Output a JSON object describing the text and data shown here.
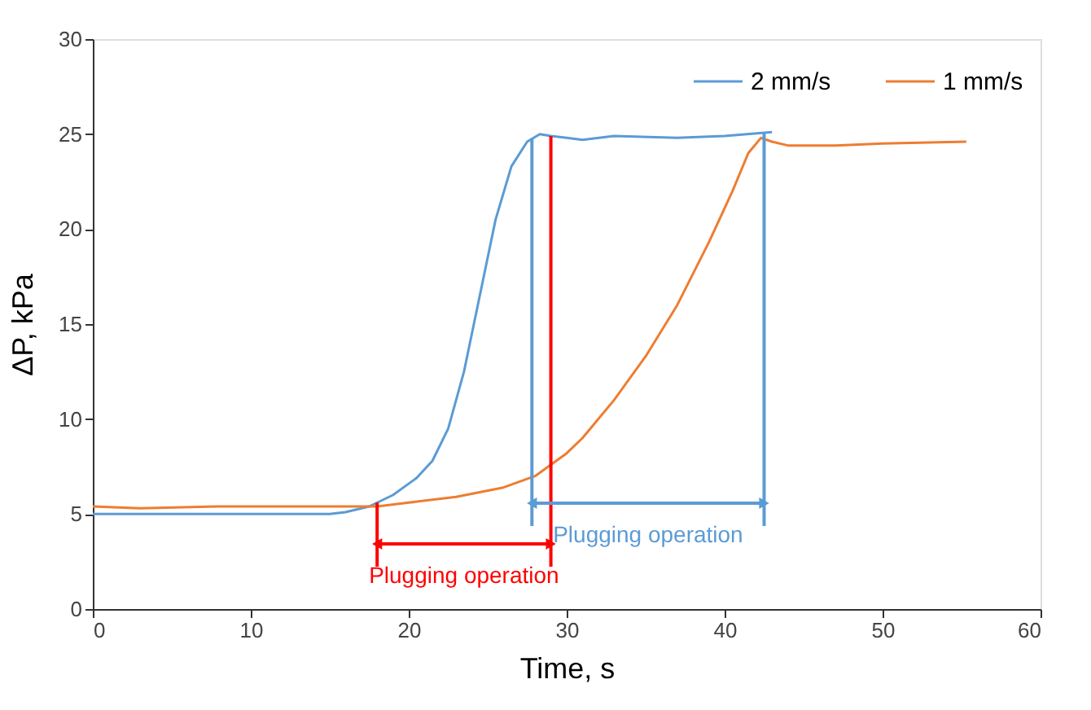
{
  "chart_data": {
    "type": "line",
    "xlabel": "Time, s",
    "ylabel": "ΔP, kPa",
    "xlim": [
      0,
      60
    ],
    "xticks": [
      0,
      10,
      20,
      30,
      40,
      50,
      60
    ],
    "ylim": [
      0,
      30
    ],
    "yticks": [
      0,
      5,
      10,
      15,
      20,
      25,
      30
    ],
    "grid": false,
    "legend": "top right",
    "marker": "none",
    "line_style": "solid",
    "series": [
      {
        "name": "2 mm/s",
        "color": "#5b9bd5",
        "x": [
          0,
          5,
          10,
          15,
          16,
          17.5,
          19,
          20.5,
          21.5,
          22.5,
          23.5,
          24.5,
          25.5,
          26.5,
          27.5,
          28.3,
          29,
          30,
          31,
          33,
          37,
          40,
          43
        ],
        "values": [
          5.0,
          5.0,
          5.0,
          5.0,
          5.1,
          5.4,
          6.0,
          6.9,
          7.8,
          9.5,
          12.5,
          16.5,
          20.5,
          23.3,
          24.6,
          25.0,
          24.9,
          24.8,
          24.7,
          24.9,
          24.8,
          24.9,
          25.1
        ]
      },
      {
        "name": "1 mm/s",
        "color": "#ed7d31",
        "x": [
          0,
          3,
          8,
          15,
          18,
          20,
          23,
          26,
          28,
          29,
          30,
          31,
          33,
          35,
          37,
          39,
          40.5,
          41.5,
          42.3,
          43,
          44,
          47,
          50,
          55.3
        ],
        "values": [
          5.4,
          5.3,
          5.4,
          5.4,
          5.4,
          5.6,
          5.9,
          6.4,
          7.0,
          7.6,
          8.2,
          9.0,
          11.0,
          13.3,
          16.0,
          19.3,
          22.0,
          24.0,
          24.8,
          24.6,
          24.4,
          24.4,
          24.5,
          24.6
        ]
      }
    ],
    "ref_lines": [
      {
        "axis": "x",
        "value": 18,
        "color": "#ff0000"
      },
      {
        "axis": "x",
        "value": 29,
        "color": "#ff0000"
      },
      {
        "axis": "x",
        "value": 27.8,
        "color": "#5b9bd5"
      },
      {
        "axis": "x",
        "value": 42.5,
        "color": "#5b9bd5"
      }
    ],
    "annotations": [
      "Plugging operation",
      "Plugging operation"
    ]
  }
}
